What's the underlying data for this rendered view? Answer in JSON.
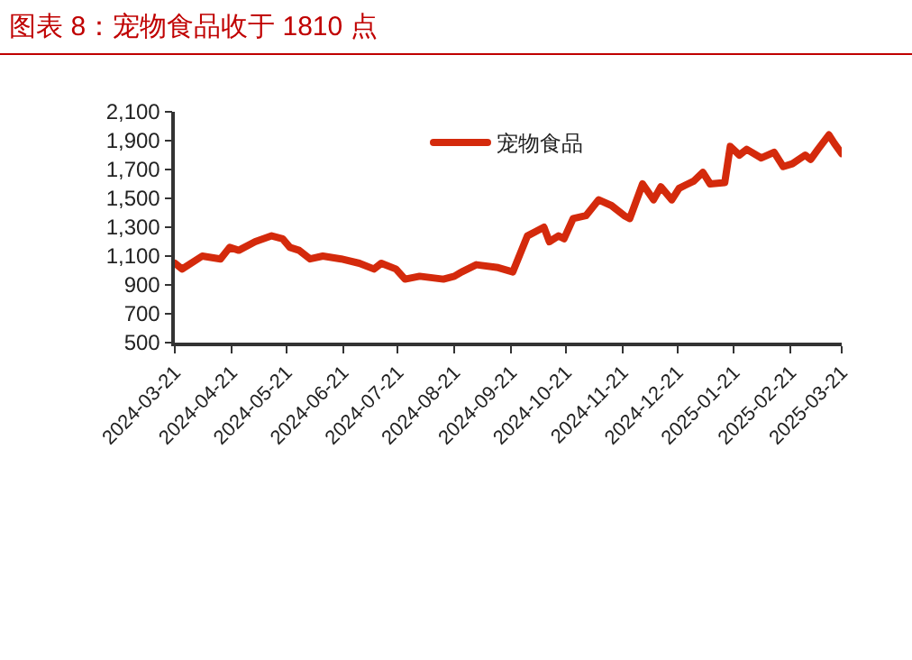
{
  "chart_data": {
    "type": "line",
    "title": "图表 8：宠物食品收于 1810 点",
    "x": [
      "2024-03-21",
      "2024-03-25",
      "2024-04-05",
      "2024-04-15",
      "2024-04-20",
      "2024-04-25",
      "2024-05-04",
      "2024-05-13",
      "2024-05-19",
      "2024-05-23",
      "2024-05-28",
      "2024-06-03",
      "2024-06-10",
      "2024-06-20",
      "2024-06-30",
      "2024-07-08",
      "2024-07-12",
      "2024-07-20",
      "2024-07-25",
      "2024-08-02",
      "2024-08-15",
      "2024-08-21",
      "2024-08-25",
      "2024-09-02",
      "2024-09-14",
      "2024-09-22",
      "2024-09-30",
      "2024-10-09",
      "2024-10-12",
      "2024-10-17",
      "2024-10-20",
      "2024-10-25",
      "2024-11-01",
      "2024-11-08",
      "2024-11-15",
      "2024-11-22",
      "2024-11-25",
      "2024-12-02",
      "2024-12-08",
      "2024-12-12",
      "2024-12-18",
      "2024-12-22",
      "2024-12-30",
      "2025-01-04",
      "2025-01-08",
      "2025-01-16",
      "2025-01-19",
      "2025-01-24",
      "2025-01-28",
      "2025-02-05",
      "2025-02-12",
      "2025-02-17",
      "2025-02-22",
      "2025-03-01",
      "2025-03-04",
      "2025-03-08",
      "2025-03-14",
      "2025-03-17",
      "2025-03-21"
    ],
    "series": [
      {
        "name": "宠物食品",
        "color": "#d42a0c",
        "values": [
          1050,
          1010,
          1100,
          1080,
          1160,
          1140,
          1200,
          1240,
          1220,
          1160,
          1140,
          1080,
          1100,
          1080,
          1050,
          1010,
          1050,
          1010,
          940,
          960,
          940,
          960,
          990,
          1040,
          1020,
          990,
          1240,
          1300,
          1200,
          1240,
          1220,
          1360,
          1380,
          1490,
          1450,
          1380,
          1360,
          1600,
          1490,
          1580,
          1490,
          1570,
          1620,
          1680,
          1600,
          1610,
          1860,
          1800,
          1840,
          1780,
          1820,
          1720,
          1740,
          1800,
          1770,
          1840,
          1940,
          1880,
          1810
        ]
      }
    ],
    "xlim": [
      "2024-03-21",
      "2025-03-21"
    ],
    "xticks": [
      "2024-03-21",
      "2024-04-21",
      "2024-05-21",
      "2024-06-21",
      "2024-07-21",
      "2024-08-21",
      "2024-09-21",
      "2024-10-21",
      "2024-11-21",
      "2024-12-21",
      "2025-01-21",
      "2025-02-21",
      "2025-03-21"
    ],
    "ylim": [
      500,
      2100
    ],
    "yticks": [
      {
        "value": 500,
        "label": "500"
      },
      {
        "value": 700,
        "label": "700"
      },
      {
        "value": 900,
        "label": "900"
      },
      {
        "value": 1100,
        "label": "1,100"
      },
      {
        "value": 1300,
        "label": "1,300"
      },
      {
        "value": 1500,
        "label": "1,500"
      },
      {
        "value": 1700,
        "label": "1,700"
      },
      {
        "value": 1900,
        "label": "1,900"
      },
      {
        "value": 2100,
        "label": "2,100"
      }
    ],
    "legend": "top",
    "marker": "none",
    "line_style": "solid"
  }
}
